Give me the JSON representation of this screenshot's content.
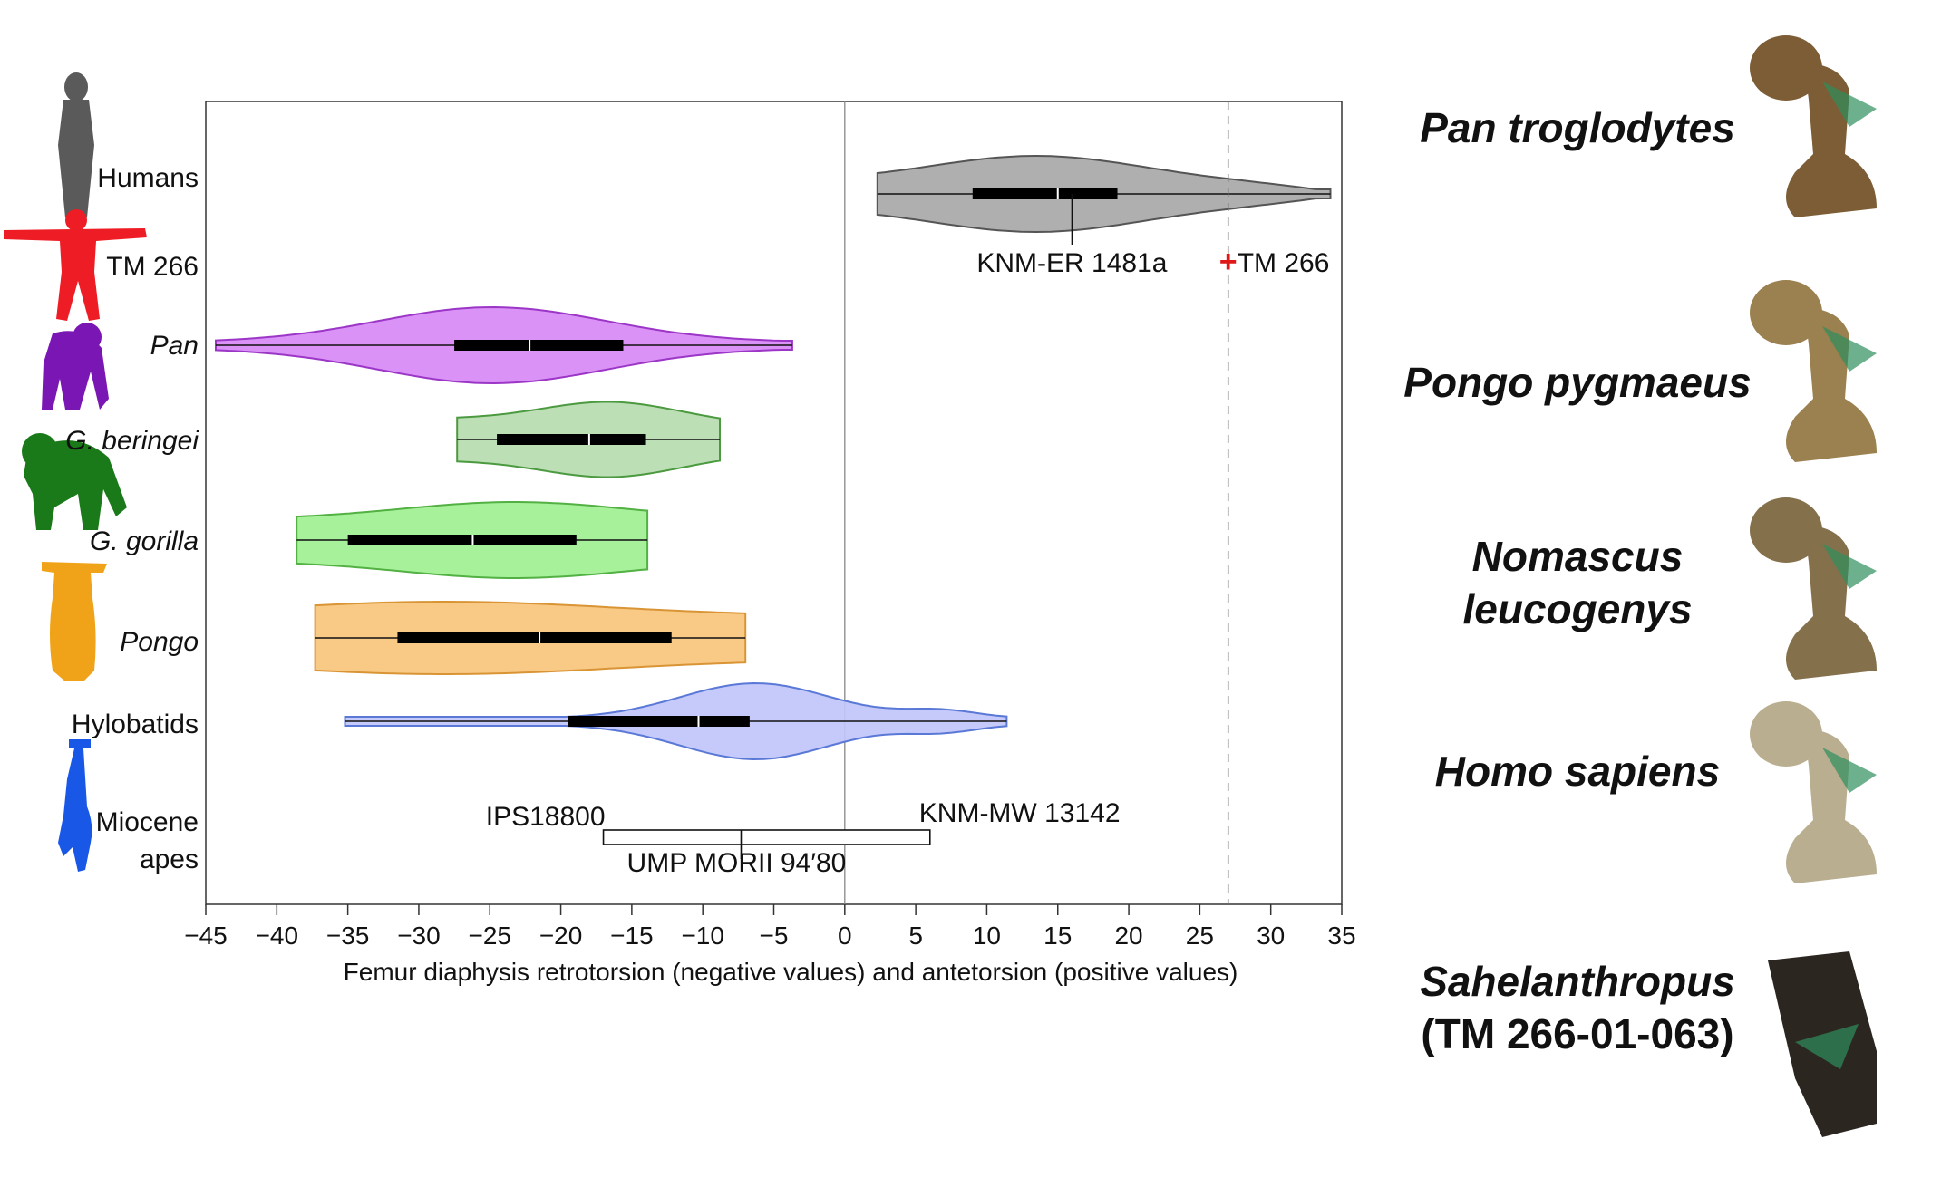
{
  "chart_data": {
    "type": "violin",
    "xlabel": "Femur diaphysis retrotorsion (negative values) and antetorsion (positive values)",
    "xlim": [
      -45,
      35
    ],
    "x_ticks": [
      "-45",
      "-40",
      "-35",
      "-30",
      "-25",
      "-20",
      "-15",
      "-10",
      "-5",
      "0",
      "5",
      "10",
      "15",
      "20",
      "25",
      "30",
      "35"
    ],
    "reference_line": 0,
    "series": [
      {
        "name": "Humans",
        "italic": false,
        "color": "#a8a8a8",
        "edge": "#555555",
        "min": 2.3,
        "q1": 9,
        "median": 15,
        "q3": 19.2,
        "max": 34.2
      },
      {
        "name": "Pan",
        "italic": true,
        "color": "#d889f5",
        "edge": "#9b36c7",
        "min": -44.3,
        "q1": -27.5,
        "median": -22.2,
        "q3": -15.6,
        "max": -3.7
      },
      {
        "name": "G. beringei",
        "italic": true,
        "color": "#b6dcb0",
        "edge": "#4c9a40",
        "min": -27.3,
        "q1": -24.5,
        "median": -18,
        "q3": -14,
        "max": -8.8
      },
      {
        "name": "G. gorilla",
        "italic": true,
        "color": "#9ef091",
        "edge": "#53b144",
        "min": -38.6,
        "q1": -35,
        "median": -26.2,
        "q3": -18.9,
        "max": -13.9
      },
      {
        "name": "Pongo",
        "italic": true,
        "color": "#f9c47c",
        "edge": "#d99535",
        "min": -37.3,
        "q1": -31.5,
        "median": -21.5,
        "q3": -12.2,
        "max": -7
      },
      {
        "name": "Hylobatids",
        "italic": false,
        "color": "#c0c6fa",
        "edge": "#5a78d6",
        "min": -35.2,
        "q1": -19.5,
        "median": -10.3,
        "q3": -6.7,
        "max": 11.4
      }
    ],
    "points": [
      {
        "label": "KNM-ER 1481a",
        "value": 16,
        "group": "Humans"
      },
      {
        "label": "TM 266",
        "value": 27,
        "marker": "red-cross",
        "reference_line": "dashed"
      }
    ],
    "miocene_apes": {
      "label": "Miocene apes",
      "min": -17,
      "max": 6,
      "mid": -7.3,
      "labels": {
        "min": "IPS18800",
        "max": "KNM-MW 13142",
        "mid": "UMP MORII 94′80"
      }
    },
    "row_labels": [
      "Humans",
      "TM 266",
      "Pan",
      "G. beringei",
      "G. gorilla",
      "Pongo",
      "Hylobatids",
      "Miocene",
      "apes"
    ]
  },
  "silhouettes": [
    {
      "name": "human-silhouette-icon",
      "color": "#5a5a5a"
    },
    {
      "name": "tm266-silhouette-icon",
      "color": "#ee1c24"
    },
    {
      "name": "pan-silhouette-icon",
      "color": "#7a16b4"
    },
    {
      "name": "gorilla-silhouette-icon",
      "color": "#1a7a1a"
    },
    {
      "name": "pongo-silhouette-icon",
      "color": "#f0a318"
    },
    {
      "name": "hylobatid-silhouette-icon",
      "color": "#1957e6"
    }
  ],
  "species": [
    {
      "lines": [
        "Pan troglodytes"
      ],
      "italic": true
    },
    {
      "lines": [
        "Pongo pygmaeus"
      ],
      "italic": true
    },
    {
      "lines": [
        "Nomascus",
        "leucogenys"
      ],
      "italic": true
    },
    {
      "lines": [
        "Homo sapiens"
      ],
      "italic": true
    },
    {
      "lines": [
        "Sahelanthropus",
        "(TM 266-01-063)"
      ],
      "italic": true,
      "second_roman": true
    }
  ],
  "bone_colors": [
    "#7d5d35",
    "#9b8050",
    "#85704c",
    "#b9ae90",
    "#2b2620"
  ]
}
